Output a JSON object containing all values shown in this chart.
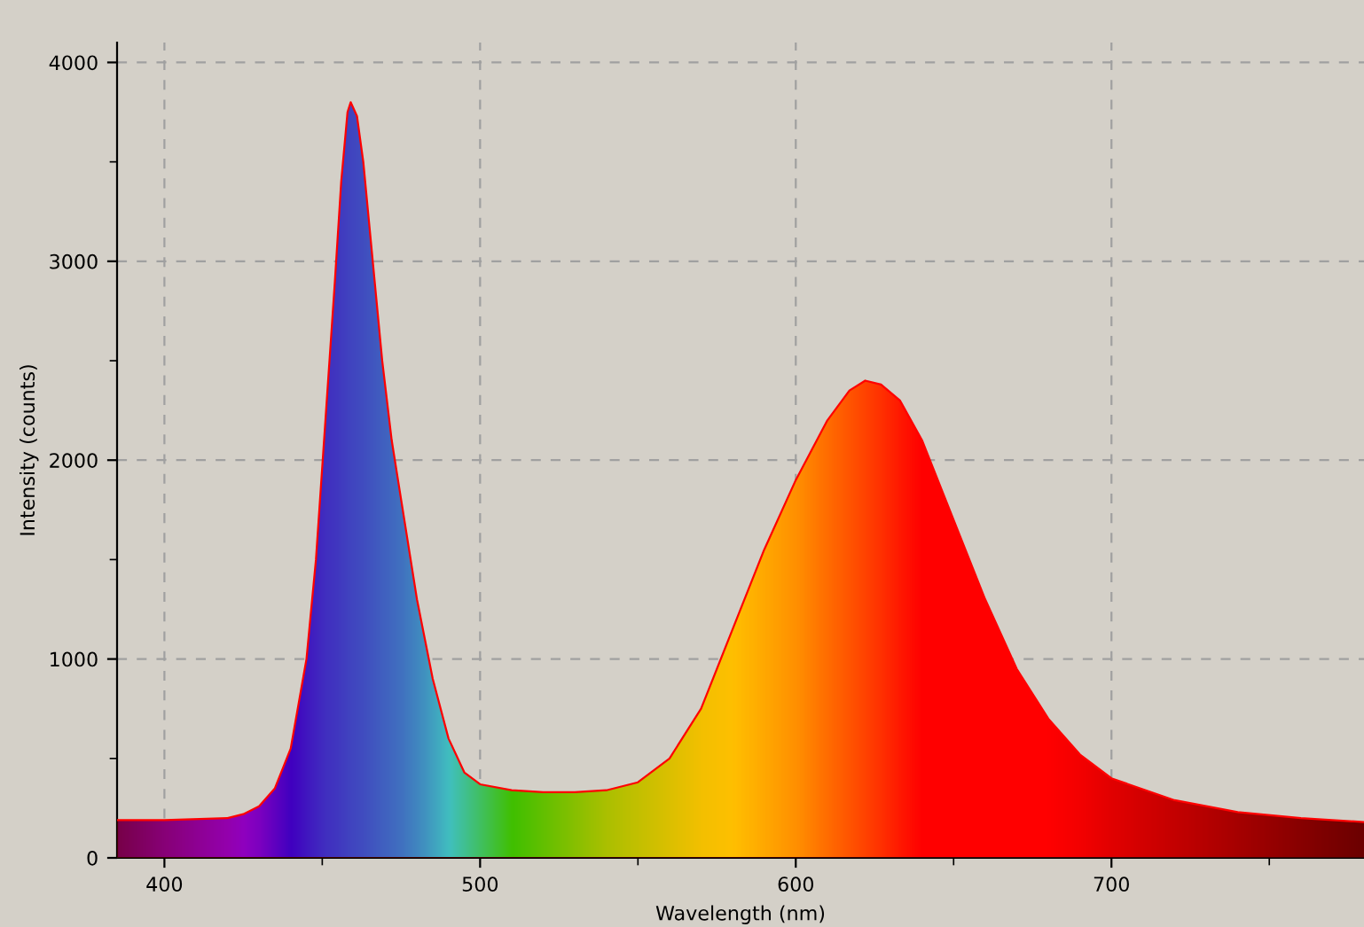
{
  "chart_data": {
    "type": "area",
    "xlabel": "Wavelength (nm)",
    "ylabel": "Intensity (counts)",
    "x": [
      385,
      400,
      420,
      425,
      430,
      435,
      440,
      445,
      448,
      451,
      454,
      456,
      458,
      459,
      461,
      463,
      466,
      469,
      472,
      475,
      480,
      485,
      490,
      495,
      500,
      510,
      520,
      530,
      540,
      550,
      560,
      570,
      580,
      590,
      600,
      610,
      617,
      622,
      627,
      633,
      640,
      650,
      660,
      670,
      680,
      690,
      700,
      720,
      740,
      760,
      780
    ],
    "series": [
      {
        "color": "#ff0000",
        "values": [
          190,
          190,
          200,
          220,
          260,
          350,
          550,
          1000,
          1500,
          2200,
          2900,
          3400,
          3750,
          3800,
          3730,
          3500,
          3000,
          2500,
          2100,
          1800,
          1300,
          900,
          600,
          430,
          370,
          340,
          330,
          330,
          340,
          380,
          500,
          750,
          1150,
          1550,
          1900,
          2200,
          2350,
          2400,
          2380,
          2300,
          2100,
          1700,
          1300,
          950,
          700,
          520,
          400,
          290,
          230,
          200,
          180
        ],
        "colors": [
          "#4b0062",
          "#6000a0",
          "#7000e8",
          "#6a00ff",
          "#5000ff",
          "#2800ff",
          "#0000ff",
          "#0020ff",
          "#0030ff",
          "#0040ff",
          "#0048ff",
          "#0050ff",
          "#0058ff",
          "#005cff",
          "#0062ff",
          "#0068ff",
          "#0074ff",
          "#0080ff",
          "#008cff",
          "#0098ff",
          "#00b4ff",
          "#00d8ff",
          "#00ffff",
          "#00ffc0",
          "#00ff80",
          "#00ff00",
          "#30ff00",
          "#60ff00",
          "#90ff00",
          "#b0ff00",
          "#d0ff00",
          "#f0ff00",
          "#ffff00",
          "#ffe000",
          "#ffc000",
          "#ff9000",
          "#ff7000",
          "#ff5800",
          "#ff4000",
          "#ff2000",
          "#ff0000",
          "#ff0000",
          "#ff0000",
          "#ff0000",
          "#ff0000",
          "#f00000",
          "#d80000",
          "#b00000",
          "#880000",
          "#600000",
          "#3a0000"
        ]
      }
    ],
    "xlim": [
      385,
      780
    ],
    "xticks": [
      400,
      {
        "value": 450,
        "label": null
      },
      500,
      {
        "value": 550,
        "label": null
      },
      600,
      {
        "value": 650,
        "label": null
      },
      700,
      {
        "value": 750,
        "label": null
      }
    ],
    "ylim": [
      0,
      4100
    ],
    "yticks": [
      0,
      {
        "value": 500,
        "label": null
      },
      1000,
      {
        "value": 1500,
        "label": null
      },
      2000,
      {
        "value": 2500,
        "label": null
      },
      3000,
      {
        "value": 3500,
        "label": null
      },
      4000
    ],
    "grid": true
  }
}
